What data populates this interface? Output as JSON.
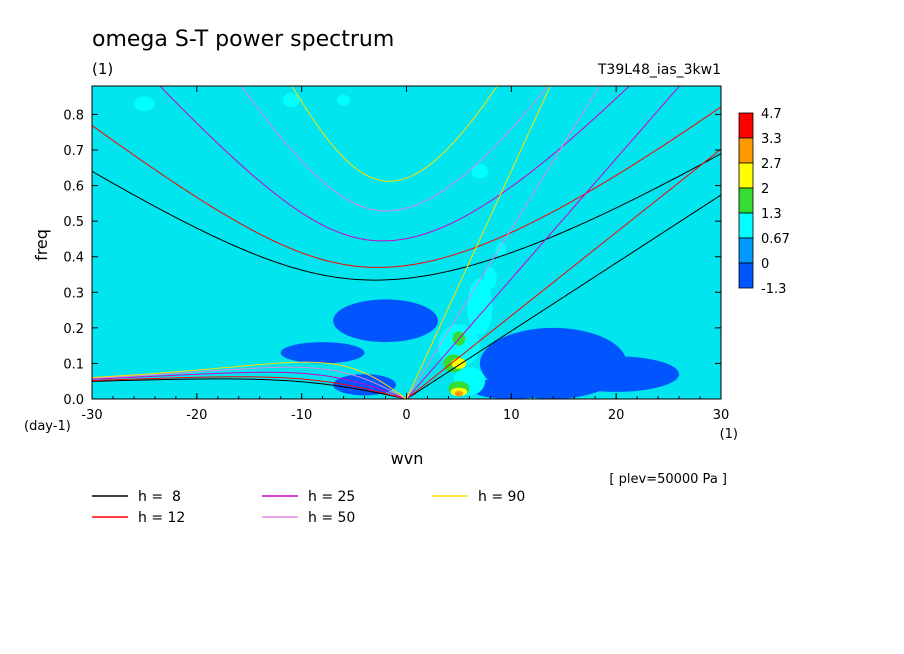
{
  "chart_data": {
    "type": "heatmap",
    "title": "omega S-T power spectrum",
    "subtitle_left": "(1)",
    "subtitle_right": "T39L48_ias_3kw1",
    "xlabel": "wvn",
    "ylabel": "freq",
    "x_unit_label": "(1)",
    "y_unit_label": "(day-1)",
    "plev_note": "[ plev=50000 Pa ]",
    "xlim": [
      -30,
      30
    ],
    "ylim": [
      0,
      0.88
    ],
    "xticks": [
      "-30",
      "-20",
      "-10",
      "0",
      "10",
      "20",
      "30"
    ],
    "yticks": [
      "0.0",
      "0.1",
      "0.2",
      "0.3",
      "0.4",
      "0.5",
      "0.6",
      "0.7",
      "0.8"
    ],
    "colorbar": {
      "labels": [
        "4.7",
        "3.3",
        "2.7",
        "2",
        "1.3",
        "0.67",
        "0",
        "-1.3"
      ],
      "colors": [
        "#ff0000",
        "#ff9900",
        "#ffff00",
        "#33dd33",
        "#00ffff",
        "#0099ff",
        "#0055ff"
      ]
    },
    "background_color": "#00e5ee",
    "features": [
      {
        "kind": "patch",
        "level": 0,
        "x": -2,
        "y": 0.22,
        "rx": 5,
        "ry": 0.06
      },
      {
        "kind": "patch",
        "level": 0,
        "x": -8,
        "y": 0.13,
        "rx": 4,
        "ry": 0.03
      },
      {
        "kind": "patch",
        "level": 0,
        "x": 14,
        "y": 0.1,
        "rx": 7,
        "ry": 0.1
      },
      {
        "kind": "patch",
        "level": 0,
        "x": 20,
        "y": 0.07,
        "rx": 6,
        "ry": 0.05
      },
      {
        "kind": "patch",
        "level": 0,
        "x": 10,
        "y": 0.03,
        "rx": 4,
        "ry": 0.03
      },
      {
        "kind": "patch",
        "level": 0,
        "x": -4,
        "y": 0.04,
        "rx": 3,
        "ry": 0.03
      },
      {
        "kind": "patch",
        "level": 2,
        "x": 7,
        "y": 0.26,
        "rx": 1.2,
        "ry": 0.08
      },
      {
        "kind": "patch",
        "level": 2,
        "x": 5,
        "y": 0.15,
        "rx": 2,
        "ry": 0.06
      },
      {
        "kind": "patch",
        "level": 2,
        "x": 6,
        "y": 0.05,
        "rx": 1.5,
        "ry": 0.04
      },
      {
        "kind": "patch",
        "level": 2,
        "x": 8,
        "y": 0.34,
        "rx": 0.6,
        "ry": 0.03
      },
      {
        "kind": "patch",
        "level": 2,
        "x": 9,
        "y": 0.42,
        "rx": 0.5,
        "ry": 0.02
      },
      {
        "kind": "patch",
        "level": 2,
        "x": 7,
        "y": 0.64,
        "rx": 0.8,
        "ry": 0.02
      },
      {
        "kind": "patch",
        "level": 2,
        "x": -25,
        "y": 0.83,
        "rx": 1.0,
        "ry": 0.02
      },
      {
        "kind": "patch",
        "level": 2,
        "x": -11,
        "y": 0.84,
        "rx": 0.8,
        "ry": 0.02
      },
      {
        "kind": "patch",
        "level": 2,
        "x": -6,
        "y": 0.84,
        "rx": 0.6,
        "ry": 0.015
      },
      {
        "kind": "patch",
        "level": 3,
        "x": 4.5,
        "y": 0.1,
        "rx": 1.0,
        "ry": 0.025
      },
      {
        "kind": "patch",
        "level": 3,
        "x": 5,
        "y": 0.17,
        "rx": 0.6,
        "ry": 0.02
      },
      {
        "kind": "patch",
        "level": 3,
        "x": 5,
        "y": 0.03,
        "rx": 1.0,
        "ry": 0.02
      },
      {
        "kind": "patch",
        "level": 4,
        "x": 5,
        "y": 0.1,
        "rx": 0.7,
        "ry": 0.015
      },
      {
        "kind": "patch",
        "level": 4,
        "x": 5,
        "y": 0.02,
        "rx": 0.8,
        "ry": 0.012
      },
      {
        "kind": "patch",
        "level": 5,
        "x": 5,
        "y": 0.015,
        "rx": 0.4,
        "ry": 0.008
      }
    ],
    "legend": [
      {
        "label": "h =  8",
        "h": 8,
        "color": "#000000"
      },
      {
        "label": "h = 12",
        "h": 12,
        "color": "#ff0000"
      },
      {
        "label": "h = 25",
        "h": 25,
        "color": "#cc00cc"
      },
      {
        "label": "h = 50",
        "h": 50,
        "color": "#dd88dd"
      },
      {
        "label": "h = 90",
        "h": 90,
        "color": "#ffdd00"
      }
    ],
    "dispersion_curves": [
      {
        "family": "inertio-gravity n=1",
        "h": [
          8,
          12,
          25,
          50,
          90
        ]
      },
      {
        "family": "kelvin",
        "h": [
          8,
          12,
          25,
          50,
          90
        ]
      },
      {
        "family": "rossby n=1",
        "h": [
          8,
          12,
          25,
          50,
          90
        ]
      }
    ]
  }
}
